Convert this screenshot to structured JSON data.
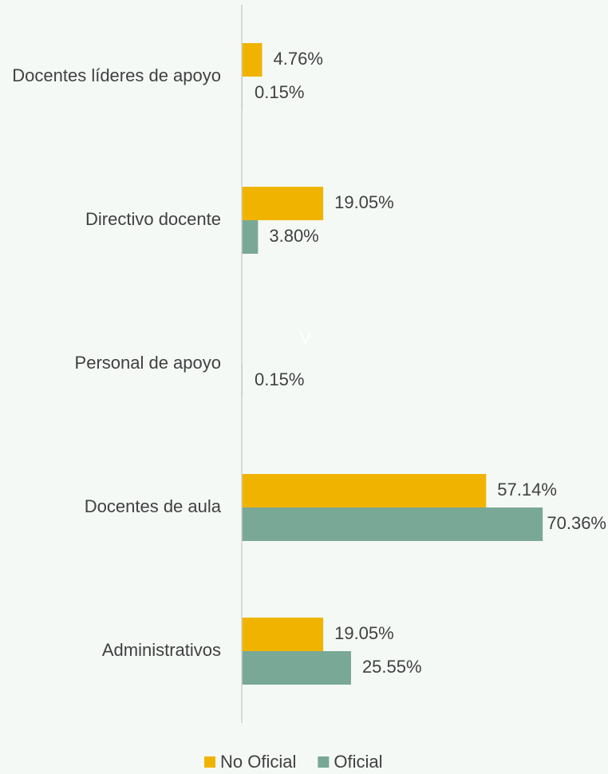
{
  "chart_data": {
    "type": "hbar",
    "categories": [
      "Docentes líderes de apoyo",
      "Directivo docente",
      "Personal de apoyo",
      "Docentes de aula",
      "Administrativos"
    ],
    "series": [
      {
        "name": "No Oficial",
        "color": "#f0b400",
        "values": [
          4.76,
          19.05,
          null,
          57.14,
          19.05
        ],
        "value_labels": [
          "4.76%",
          "19.05%",
          null,
          "57.14%",
          "19.05%"
        ]
      },
      {
        "name": "Oficial",
        "color": "#79a896",
        "values": [
          0.15,
          3.8,
          0.15,
          70.36,
          25.55
        ],
        "value_labels": [
          "0.15%",
          "3.80%",
          "0.15%",
          "70.36%",
          "25.55%"
        ]
      }
    ],
    "xlim": [
      0,
      75
    ],
    "annotation": "V",
    "legend": "bottom"
  }
}
